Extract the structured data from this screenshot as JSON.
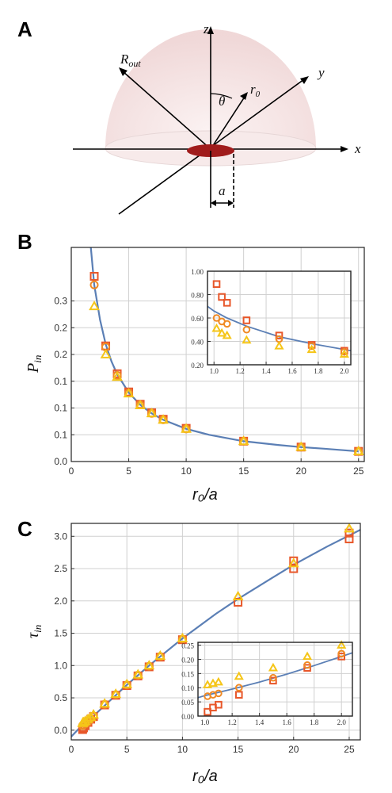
{
  "panels": {
    "a": "A",
    "b": "B",
    "c": "C"
  },
  "diagram": {
    "labels": {
      "z": "z",
      "y": "y",
      "x": "x",
      "r_out": "R",
      "r_out_sub": "out",
      "r0": "r",
      "r0_sub": "0",
      "theta": "θ",
      "a": "a"
    },
    "colors": {
      "dome": "#f3dede",
      "disk": "#a01c1c",
      "axes": "#000000"
    }
  },
  "colors": {
    "curve": "#5b7fb5",
    "square": "#e8572a",
    "circle": "#f08a24",
    "triangle": "#f5c518",
    "grid": "#d0d0d0"
  },
  "chart_data": [
    {
      "type": "scatter",
      "panel": "B",
      "xlabel": "r₀/a",
      "ylabel": "P",
      "ylabel_sub": "in",
      "xlim": [
        0,
        25.5
      ],
      "ylim": [
        0,
        0.4
      ],
      "xticks": [
        0,
        5,
        10,
        15,
        20,
        25
      ],
      "yticks": [
        0.0,
        0.1,
        0.2,
        0.3
      ],
      "ytick_labels": [
        "0.0",
        "0.1",
        "0.1",
        "0.1",
        "0.2",
        "0.2",
        "0.3"
      ],
      "ytick_values": [
        0.0,
        0.05,
        0.1,
        0.15,
        0.2,
        0.25,
        0.3
      ],
      "grid": true,
      "curve": {
        "x": [
          1.7,
          2,
          2.5,
          3,
          3.5,
          4,
          5,
          6,
          7,
          8,
          10,
          12,
          15,
          18,
          20,
          22,
          25
        ],
        "y": [
          0.4,
          0.33,
          0.265,
          0.219,
          0.187,
          0.163,
          0.129,
          0.106,
          0.09,
          0.078,
          0.061,
          0.05,
          0.038,
          0.031,
          0.027,
          0.024,
          0.019
        ]
      },
      "series": [
        {
          "marker": "square",
          "x": [
            2,
            3,
            4,
            5,
            6,
            7,
            8,
            10,
            15,
            20,
            25
          ],
          "y": [
            0.346,
            0.216,
            0.164,
            0.13,
            0.107,
            0.091,
            0.079,
            0.062,
            0.038,
            0.027,
            0.019
          ]
        },
        {
          "marker": "circle",
          "x": [
            2,
            3,
            4,
            5,
            6,
            7,
            8,
            10,
            15,
            20,
            25
          ],
          "y": [
            0.33,
            0.214,
            0.161,
            0.128,
            0.106,
            0.09,
            0.078,
            0.061,
            0.038,
            0.027,
            0.019
          ]
        },
        {
          "marker": "triangle",
          "x": [
            2,
            3,
            4,
            5,
            6,
            7,
            8,
            10,
            15,
            20,
            25
          ],
          "y": [
            0.29,
            0.2,
            0.158,
            0.127,
            0.105,
            0.09,
            0.078,
            0.061,
            0.038,
            0.027,
            0.019
          ]
        }
      ],
      "inset": {
        "xlim": [
          0.95,
          2.05
        ],
        "ylim": [
          0.2,
          1.0
        ],
        "xticks": [
          1.0,
          1.2,
          1.4,
          1.6,
          1.8,
          2.0
        ],
        "xtick_labels": [
          "1.0",
          "1.2",
          "1.4",
          "1.6",
          "1.8",
          "2.0"
        ],
        "yticks": [
          0.2,
          0.4,
          0.6,
          0.8,
          1.0
        ],
        "ytick_labels": [
          "0.20",
          "0.40",
          "0.60",
          "0.80",
          "1.00"
        ],
        "curve": {
          "x": [
            0.95,
            1.0,
            1.1,
            1.25,
            1.5,
            1.75,
            2.0,
            2.05
          ],
          "y": [
            0.7,
            0.66,
            0.6,
            0.53,
            0.44,
            0.38,
            0.33,
            0.32
          ]
        },
        "series": [
          {
            "marker": "square",
            "x": [
              1.02,
              1.06,
              1.1,
              1.25,
              1.5,
              1.75,
              2.0
            ],
            "y": [
              0.89,
              0.78,
              0.73,
              0.58,
              0.45,
              0.37,
              0.32
            ]
          },
          {
            "marker": "circle",
            "x": [
              1.02,
              1.06,
              1.1,
              1.25,
              1.5,
              1.75,
              2.0
            ],
            "y": [
              0.6,
              0.57,
              0.55,
              0.5,
              0.42,
              0.36,
              0.31
            ]
          },
          {
            "marker": "triangle",
            "x": [
              1.02,
              1.06,
              1.1,
              1.25,
              1.5,
              1.75,
              2.0
            ],
            "y": [
              0.51,
              0.47,
              0.45,
              0.41,
              0.36,
              0.33,
              0.29
            ]
          }
        ]
      }
    },
    {
      "type": "scatter",
      "panel": "C",
      "xlabel": "r₀/a",
      "ylabel": "τ",
      "ylabel_sub": "in",
      "xlim": [
        0,
        26
      ],
      "ylim": [
        -0.15,
        3.2
      ],
      "xticks": [
        0,
        5,
        10,
        15,
        20,
        25
      ],
      "yticks": [
        0.0,
        0.5,
        1.0,
        1.5,
        2.0,
        2.5,
        3.0
      ],
      "ytick_labels": [
        "0.0",
        "0.5",
        "1.0",
        "1.5",
        "2.0",
        "2.5",
        "3.0"
      ],
      "grid": true,
      "curve": {
        "x": [
          0,
          1,
          2,
          3,
          5,
          7,
          10,
          13,
          15,
          18,
          20,
          23,
          26
        ],
        "y": [
          -0.1,
          0.08,
          0.22,
          0.38,
          0.7,
          1.0,
          1.42,
          1.8,
          2.03,
          2.35,
          2.56,
          2.84,
          3.1
        ]
      },
      "series": [
        {
          "marker": "square",
          "x": [
            1.02,
            1.06,
            1.1,
            1.25,
            1.5,
            1.75,
            2,
            3,
            4,
            5,
            6,
            7,
            8,
            10,
            15,
            20,
            20,
            25,
            25
          ],
          "y": [
            0.01,
            0.03,
            0.04,
            0.07,
            0.12,
            0.17,
            0.21,
            0.39,
            0.54,
            0.69,
            0.84,
            0.98,
            1.13,
            1.4,
            1.98,
            2.5,
            2.62,
            2.96,
            3.05
          ]
        },
        {
          "marker": "circle",
          "x": [
            1.02,
            1.06,
            1.1,
            1.25,
            1.5,
            1.75,
            2,
            3,
            4,
            5,
            6,
            7,
            8,
            10
          ],
          "y": [
            0.07,
            0.08,
            0.08,
            0.1,
            0.13,
            0.18,
            0.22,
            0.4,
            0.55,
            0.7,
            0.85,
            0.99,
            1.14,
            1.41
          ]
        },
        {
          "marker": "triangle",
          "x": [
            1.02,
            1.06,
            1.1,
            1.25,
            1.5,
            1.75,
            2,
            3,
            4,
            5,
            6,
            7,
            8,
            10,
            15,
            20,
            25
          ],
          "y": [
            0.11,
            0.12,
            0.12,
            0.14,
            0.17,
            0.2,
            0.24,
            0.41,
            0.56,
            0.71,
            0.86,
            1.0,
            1.15,
            1.42,
            2.07,
            2.58,
            3.12
          ]
        }
      ],
      "inset": {
        "xlim": [
          0.95,
          2.08
        ],
        "ylim": [
          0,
          0.26
        ],
        "xticks": [
          1.0,
          1.2,
          1.4,
          1.6,
          1.8,
          2.0
        ],
        "xtick_labels": [
          "1.0",
          "1.2",
          "1.4",
          "1.6",
          "1.8",
          "2.0"
        ],
        "yticks": [
          0,
          0.05,
          0.1,
          0.15,
          0.2,
          0.25
        ],
        "ytick_labels": [
          "0.00",
          "0.05",
          "0.10",
          "0.15",
          "0.20",
          "0.25"
        ],
        "curve": {
          "x": [
            0.95,
            1.0,
            1.2,
            1.4,
            1.6,
            1.8,
            2.0,
            2.08
          ],
          "y": [
            0.065,
            0.072,
            0.095,
            0.12,
            0.148,
            0.178,
            0.21,
            0.223
          ]
        },
        "series": [
          {
            "marker": "square",
            "x": [
              1.02,
              1.06,
              1.1,
              1.25,
              1.5,
              1.75,
              2.0
            ],
            "y": [
              0.015,
              0.03,
              0.04,
              0.075,
              0.125,
              0.17,
              0.21
            ]
          },
          {
            "marker": "circle",
            "x": [
              1.02,
              1.06,
              1.1,
              1.25,
              1.5,
              1.75,
              2.0
            ],
            "y": [
              0.07,
              0.075,
              0.08,
              0.1,
              0.135,
              0.18,
              0.22
            ]
          },
          {
            "marker": "triangle",
            "x": [
              1.02,
              1.06,
              1.1,
              1.25,
              1.5,
              1.75,
              2.0
            ],
            "y": [
              0.11,
              0.115,
              0.12,
              0.14,
              0.17,
              0.21,
              0.25
            ]
          }
        ]
      }
    }
  ]
}
